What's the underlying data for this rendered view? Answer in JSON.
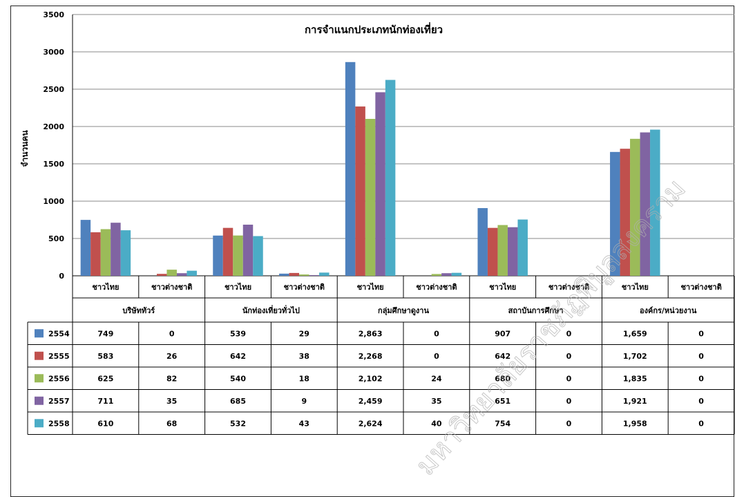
{
  "chart_data": {
    "type": "bar",
    "title": "การจำแนกประเภทนักท่องเที่ยว",
    "ylabel": "จำนวนคน",
    "xlabel": "",
    "ylim": [
      0,
      3500
    ],
    "yticks": [
      0,
      500,
      1000,
      1500,
      2000,
      2500,
      3000,
      3500
    ],
    "grid": true,
    "legend": "table-left",
    "groups": [
      "บริษัททัวร์",
      "นักท่องเที่ยวทั่วไป",
      "กลุ่มศึกษาดูงาน",
      "สถาบันการศึกษา",
      "องค์กร/หน่วยงาน"
    ],
    "subcategories": [
      "ชาวไทย",
      "ชาวต่างชาติ"
    ],
    "categories": [
      "ชาวไทย",
      "ชาวต่างชาติ",
      "ชาวไทย",
      "ชาวต่างชาติ",
      "ชาวไทย",
      "ชาวต่างชาติ",
      "ชาวไทย",
      "ชาวต่างชาติ",
      "ชาวไทย",
      "ชาวต่างชาติ"
    ],
    "series": [
      {
        "name": "2554",
        "color": "#4F81BD",
        "values": [
          749,
          0,
          539,
          29,
          2863,
          0,
          907,
          0,
          1659,
          0
        ],
        "labels": [
          "749",
          "0",
          "539",
          "29",
          "2,863",
          "0",
          "907",
          "0",
          "1,659",
          "0"
        ]
      },
      {
        "name": "2555",
        "color": "#C0504D",
        "values": [
          583,
          26,
          642,
          38,
          2268,
          0,
          642,
          0,
          1702,
          0
        ],
        "labels": [
          "583",
          "26",
          "642",
          "38",
          "2,268",
          "0",
          "642",
          "0",
          "1,702",
          "0"
        ]
      },
      {
        "name": "2556",
        "color": "#9BBB59",
        "values": [
          625,
          82,
          540,
          18,
          2102,
          24,
          680,
          0,
          1835,
          0
        ],
        "labels": [
          "625",
          "82",
          "540",
          "18",
          "2,102",
          "24",
          "680",
          "0",
          "1,835",
          "0"
        ]
      },
      {
        "name": "2557",
        "color": "#8064A2",
        "values": [
          711,
          35,
          685,
          9,
          2459,
          35,
          651,
          0,
          1921,
          0
        ],
        "labels": [
          "711",
          "35",
          "685",
          "9",
          "2,459",
          "35",
          "651",
          "0",
          "1,921",
          "0"
        ]
      },
      {
        "name": "2558",
        "color": "#4BACC6",
        "values": [
          610,
          68,
          532,
          43,
          2624,
          40,
          754,
          0,
          1958,
          0
        ],
        "labels": [
          "610",
          "68",
          "532",
          "43",
          "2,624",
          "40",
          "754",
          "0",
          "1,958",
          "0"
        ]
      }
    ]
  },
  "watermark": "มหาวิทยาลัยราชภัฏพิบูลสงคราม"
}
